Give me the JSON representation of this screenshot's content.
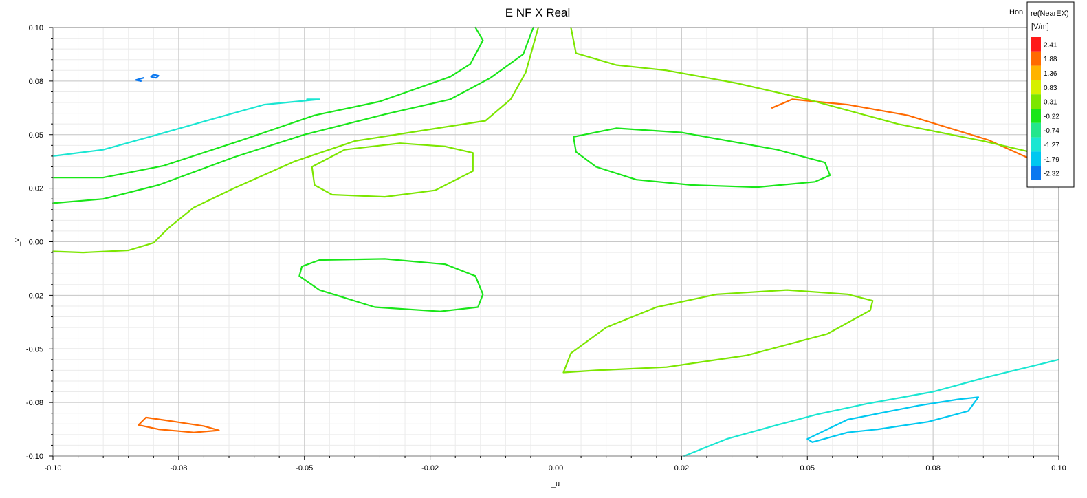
{
  "chart_data": {
    "type": "contour",
    "title": "E NF X Real",
    "xlabel": "_u",
    "ylabel": "_v",
    "xlim": [
      -0.1,
      0.1
    ],
    "ylim": [
      -0.1,
      0.1
    ],
    "x_ticks": [
      "-0.10",
      "-0.08",
      "-0.05",
      "-0.02",
      "0.00",
      "0.02",
      "0.05",
      "0.08",
      "0.10"
    ],
    "x_tick_values": [
      -0.1,
      -0.075,
      -0.05,
      -0.025,
      0.0,
      0.025,
      0.05,
      0.075,
      0.1
    ],
    "y_ticks": [
      "0.10",
      "0.08",
      "0.05",
      "0.02",
      "0.00",
      "-0.02",
      "-0.05",
      "-0.08",
      "-0.10"
    ],
    "y_tick_values": [
      0.1,
      0.075,
      0.05,
      0.025,
      0.0,
      -0.025,
      -0.05,
      -0.075,
      -0.1
    ],
    "grid": true,
    "corner_label": "Hon",
    "legend": {
      "title_line1": "re(NearEX)",
      "title_line2": "[V/m]",
      "placement": "top-right",
      "levels": [
        {
          "label": "2.41",
          "color": "#ff1a1a"
        },
        {
          "label": "1.88",
          "color": "#ff6a00"
        },
        {
          "label": "1.36",
          "color": "#ffb300"
        },
        {
          "label": "0.83",
          "color": "#d6f000"
        },
        {
          "label": "0.31",
          "color": "#7ce600"
        },
        {
          "label": "-0.22",
          "color": "#19e619"
        },
        {
          "label": "-0.74",
          "color": "#24e68c"
        },
        {
          "label": "-1.27",
          "color": "#1ae6d2"
        },
        {
          "label": "-1.79",
          "color": "#00c8f0"
        },
        {
          "label": "-2.32",
          "color": "#0a78f0"
        }
      ]
    },
    "contours": [
      {
        "level": "0.31",
        "color": "#7ce600",
        "points": [
          [
            -0.0485,
            0.035
          ],
          [
            -0.042,
            0.043
          ],
          [
            -0.031,
            0.046
          ],
          [
            -0.022,
            0.0445
          ],
          [
            -0.0165,
            0.0415
          ],
          [
            -0.0165,
            0.033
          ],
          [
            -0.024,
            0.024
          ],
          [
            -0.034,
            0.021
          ],
          [
            -0.0445,
            0.022
          ],
          [
            -0.048,
            0.0265
          ],
          [
            -0.0485,
            0.035
          ]
        ],
        "closed": true
      },
      {
        "level": "-0.22",
        "color": "#19e619",
        "points": [
          [
            0.0035,
            0.049
          ],
          [
            0.012,
            0.053
          ],
          [
            0.025,
            0.051
          ],
          [
            0.044,
            0.043
          ],
          [
            0.0535,
            0.037
          ],
          [
            0.0545,
            0.031
          ],
          [
            0.0515,
            0.028
          ],
          [
            0.04,
            0.0255
          ],
          [
            0.027,
            0.0265
          ],
          [
            0.016,
            0.029
          ],
          [
            0.008,
            0.035
          ],
          [
            0.004,
            0.042
          ],
          [
            0.0035,
            0.049
          ]
        ],
        "closed": true
      },
      {
        "level": "-0.22",
        "color": "#19e619",
        "points": [
          [
            -0.0505,
            -0.0115
          ],
          [
            -0.047,
            -0.0085
          ],
          [
            -0.034,
            -0.008
          ],
          [
            -0.022,
            -0.0105
          ],
          [
            -0.016,
            -0.016
          ],
          [
            -0.0145,
            -0.0245
          ],
          [
            -0.0155,
            -0.0305
          ],
          [
            -0.023,
            -0.0325
          ],
          [
            -0.036,
            -0.0305
          ],
          [
            -0.047,
            -0.0225
          ],
          [
            -0.051,
            -0.016
          ],
          [
            -0.0505,
            -0.0115
          ]
        ],
        "closed": true
      },
      {
        "level": "0.31",
        "color": "#7ce600",
        "points": [
          [
            0.0015,
            -0.061
          ],
          [
            0.003,
            -0.052
          ],
          [
            0.01,
            -0.04
          ],
          [
            0.02,
            -0.0305
          ],
          [
            0.032,
            -0.0245
          ],
          [
            0.046,
            -0.0225
          ],
          [
            0.058,
            -0.0245
          ],
          [
            0.063,
            -0.0275
          ],
          [
            0.0625,
            -0.032
          ],
          [
            0.054,
            -0.043
          ],
          [
            0.038,
            -0.053
          ],
          [
            0.022,
            -0.0585
          ],
          [
            0.008,
            -0.06
          ],
          [
            0.0015,
            -0.061
          ]
        ],
        "closed": true
      },
      {
        "level": "1.88",
        "color": "#ff6a00",
        "points": [
          [
            -0.0815,
            -0.082
          ],
          [
            -0.077,
            -0.0835
          ],
          [
            -0.07,
            -0.086
          ],
          [
            -0.067,
            -0.088
          ],
          [
            -0.072,
            -0.089
          ],
          [
            -0.079,
            -0.0875
          ],
          [
            -0.083,
            -0.0855
          ],
          [
            -0.0815,
            -0.082
          ]
        ],
        "closed": true
      },
      {
        "level": "1.88",
        "color": "#ff6a00",
        "points": [
          [
            0.043,
            0.0625
          ],
          [
            0.047,
            0.0665
          ],
          [
            0.058,
            0.064
          ],
          [
            0.07,
            0.059
          ],
          [
            0.086,
            0.0475
          ],
          [
            0.095,
            0.038
          ],
          [
            0.1,
            0.0345
          ]
        ],
        "closed": false
      },
      {
        "level": "-1.79",
        "color": "#0a78f0",
        "points": [
          [
            -0.082,
            0.0765
          ],
          [
            -0.0835,
            0.0755
          ],
          [
            -0.0825,
            0.075
          ]
        ],
        "closed": false
      },
      {
        "level": "-1.79",
        "color": "#0a78f0",
        "points": [
          [
            -0.08,
            0.078
          ],
          [
            -0.079,
            0.0775
          ],
          [
            -0.0795,
            0.0765
          ],
          [
            -0.0805,
            0.077
          ],
          [
            -0.08,
            0.078
          ]
        ],
        "closed": true
      },
      {
        "level": "-1.27",
        "color": "#00c8f0",
        "points": [
          [
            0.05,
            -0.092
          ],
          [
            0.058,
            -0.083
          ],
          [
            0.072,
            -0.0765
          ],
          [
            0.08,
            -0.0735
          ],
          [
            0.084,
            -0.0725
          ],
          [
            0.082,
            -0.079
          ],
          [
            0.074,
            -0.084
          ],
          [
            0.064,
            -0.0875
          ],
          [
            0.058,
            -0.089
          ],
          [
            0.051,
            -0.0935
          ],
          [
            0.05,
            -0.092
          ]
        ],
        "closed": true
      },
      {
        "level": "-0.74",
        "color": "#1ae6d2",
        "points": [
          [
            -0.1,
            0.04
          ],
          [
            -0.09,
            0.043
          ],
          [
            -0.08,
            0.0495
          ],
          [
            -0.068,
            0.0575
          ],
          [
            -0.058,
            0.064
          ],
          [
            -0.047,
            0.0665
          ],
          [
            -0.0495,
            0.0665
          ]
        ],
        "closed": false
      },
      {
        "level": "-0.74",
        "color": "#1ae6d2",
        "points": [
          [
            0.0255,
            -0.1
          ],
          [
            0.034,
            -0.092
          ],
          [
            0.044,
            -0.0855
          ],
          [
            0.052,
            -0.0805
          ],
          [
            0.062,
            -0.0755
          ],
          [
            0.075,
            -0.07
          ],
          [
            0.086,
            -0.063
          ],
          [
            0.1,
            -0.055
          ]
        ],
        "closed": false
      },
      {
        "level": "-0.22",
        "color": "#19e619",
        "points": [
          [
            -0.1,
            0.018
          ],
          [
            -0.09,
            0.02
          ],
          [
            -0.079,
            0.0265
          ],
          [
            -0.064,
            0.0395
          ],
          [
            -0.05,
            0.05
          ],
          [
            -0.034,
            0.0595
          ],
          [
            -0.021,
            0.0665
          ],
          [
            -0.013,
            0.0765
          ],
          [
            -0.0065,
            0.0875
          ],
          [
            -0.0045,
            0.1
          ]
        ],
        "closed": false
      },
      {
        "level": "0.31",
        "color": "#7ce600",
        "points": [
          [
            -0.1,
            -0.0045
          ],
          [
            -0.094,
            -0.005
          ],
          [
            -0.085,
            -0.004
          ],
          [
            -0.08,
            -0.0005
          ],
          [
            -0.077,
            0.0065
          ],
          [
            -0.072,
            0.016
          ],
          [
            -0.064,
            0.025
          ],
          [
            -0.052,
            0.0375
          ],
          [
            -0.04,
            0.047
          ],
          [
            -0.025,
            0.0525
          ],
          [
            -0.014,
            0.0565
          ],
          [
            -0.009,
            0.0665
          ],
          [
            -0.006,
            0.079
          ],
          [
            -0.0035,
            0.1
          ]
        ],
        "closed": false
      },
      {
        "level": "0.31",
        "color": "#7ce600",
        "points": [
          [
            0.003,
            0.1
          ],
          [
            0.004,
            0.088
          ],
          [
            0.012,
            0.0825
          ],
          [
            0.022,
            0.08
          ],
          [
            0.036,
            0.074
          ],
          [
            0.05,
            0.0665
          ],
          [
            0.068,
            0.055
          ],
          [
            0.085,
            0.047
          ],
          [
            0.096,
            0.041
          ],
          [
            0.1,
            0.039
          ]
        ],
        "closed": false
      },
      {
        "level": "-0.22",
        "color": "#19e619",
        "points": [
          [
            -0.1,
            0.03
          ],
          [
            -0.09,
            0.03
          ],
          [
            -0.078,
            0.0355
          ],
          [
            -0.063,
            0.047
          ],
          [
            -0.048,
            0.059
          ],
          [
            -0.035,
            0.0655
          ],
          [
            -0.021,
            0.077
          ],
          [
            -0.017,
            0.083
          ],
          [
            -0.0145,
            0.094
          ],
          [
            -0.016,
            0.1
          ]
        ],
        "closed": false
      }
    ]
  }
}
